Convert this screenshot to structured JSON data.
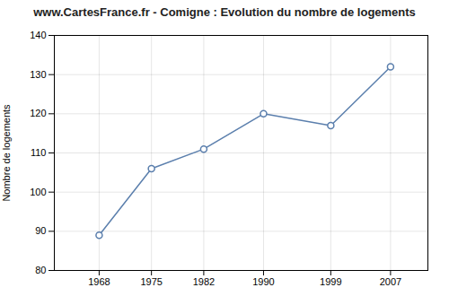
{
  "chart_data": {
    "type": "line",
    "title": "www.CartesFrance.fr - Comigne : Evolution du nombre de logements",
    "ylabel": "Nombre de logements",
    "x": [
      1968,
      1975,
      1982,
      1990,
      1999,
      2007
    ],
    "values": [
      89,
      106,
      111,
      120,
      117,
      132
    ],
    "color": "#5b7fad",
    "marker": "o",
    "xlim": [
      1962,
      2012
    ],
    "xticks": [
      1968,
      1975,
      1982,
      1990,
      1999,
      2007
    ],
    "ylim": [
      80,
      140
    ],
    "yticks": [
      80,
      90,
      100,
      110,
      120,
      130,
      140
    ],
    "grid": true
  }
}
